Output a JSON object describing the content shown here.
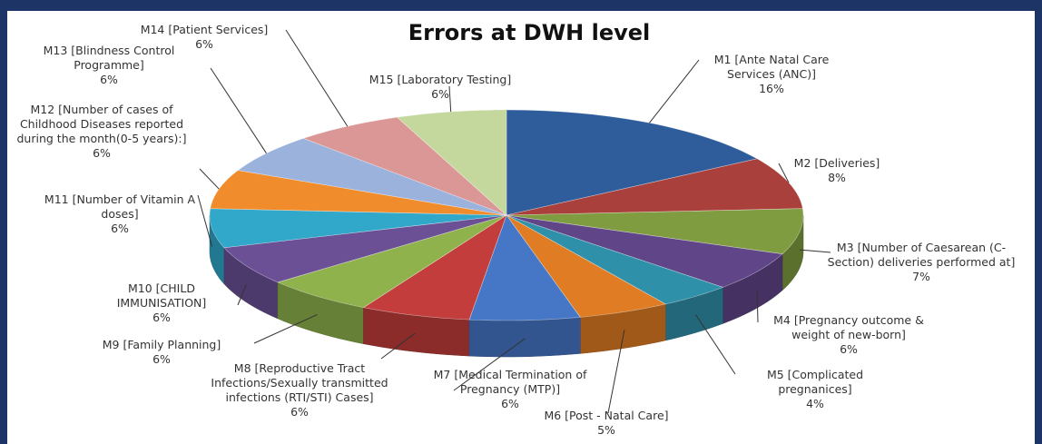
{
  "chart_data": {
    "type": "pie3d",
    "title": "Errors at DWH level",
    "categories": [
      "M1 [Ante Natal Care Services (ANC)]",
      "M2 [Deliveries]",
      "M3 [Number of Caesarean (C-Section) deliveries performed at]",
      "M4 [Pregnancy outcome & weight of new-born]",
      "M5 [Complicated pregnanices]",
      "M6 [Post - Natal Care]",
      "M7 [Medical Termination of Pregnancy (MTP)]",
      "M8 [Reproductive Tract Infections/Sexually transmitted infections (RTI/STI) Cases]",
      "M9 [Family Planning]",
      "M10 [CHILD IMMUNISATION]",
      "M11 [Number of Vitamin A doses]",
      "M12 [Number of cases of Childhood Diseases reported during the month(0-5 years):]",
      "M13 [Blindness Control Programme]",
      "M14 [Patient Services]",
      "M15 [Laboratory Testing]"
    ],
    "values": [
      16,
      8,
      7,
      6,
      4,
      5,
      6,
      6,
      6,
      6,
      6,
      6,
      6,
      6,
      6
    ],
    "value_labels": [
      "16%",
      "8%",
      "7%",
      "6%",
      "4%",
      "5%",
      "6%",
      "6%",
      "6%",
      "6%",
      "6%",
      "6%",
      "6%",
      "6%",
      "6%"
    ],
    "colors": [
      "#2f5d9c",
      "#a9403c",
      "#809c40",
      "#604688",
      "#2f90aa",
      "#e07c24",
      "#4676c6",
      "#c23d3b",
      "#8fb24c",
      "#6b5096",
      "#31a7c9",
      "#f08c2c",
      "#9bb3dc",
      "#da9796",
      "#c4d79c"
    ]
  }
}
